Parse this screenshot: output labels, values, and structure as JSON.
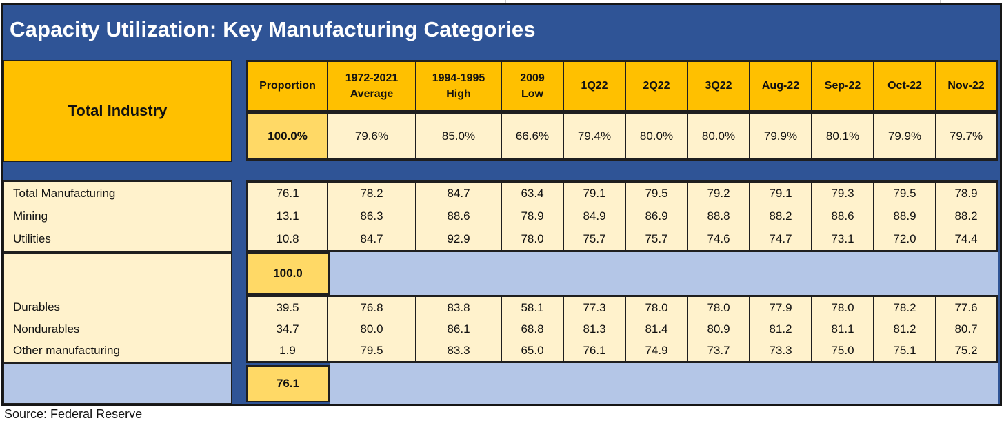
{
  "title": "Capacity Utilization: Key Manufacturing Categories",
  "source_note": "Source: Federal Reserve",
  "colors": {
    "band_blue": "#2F5496",
    "header_orange": "#FFC000",
    "subtotal_gold": "#FFD966",
    "cell_cream": "#FFF2CC",
    "empty_light_blue": "#B4C6E7",
    "border_black": "#1f1f1f",
    "title_white": "#FFFFFF"
  },
  "chart_data": {
    "type": "table",
    "title": "Capacity Utilization: Key Manufacturing Categories",
    "row_header_label": "Total Industry",
    "columns": [
      "Proportion",
      "1972-2021\nAverage",
      "1994-1995\nHigh",
      "2009\nLow",
      "1Q22",
      "2Q22",
      "3Q22",
      "Aug-22",
      "Sep-22",
      "Oct-22",
      "Nov-22"
    ],
    "total_industry_values": [
      "100.0%",
      "79.6%",
      "85.0%",
      "66.6%",
      "79.4%",
      "80.0%",
      "80.0%",
      "79.9%",
      "80.1%",
      "79.9%",
      "79.7%"
    ],
    "sections": [
      {
        "rows": [
          {
            "label": "Total Manufacturing",
            "values": [
              "76.1",
              "78.2",
              "84.7",
              "63.4",
              "79.1",
              "79.5",
              "79.2",
              "79.1",
              "79.3",
              "79.5",
              "78.9"
            ]
          },
          {
            "label": "Mining",
            "values": [
              "13.1",
              "86.3",
              "88.6",
              "78.9",
              "84.9",
              "86.9",
              "88.8",
              "88.2",
              "88.6",
              "88.9",
              "88.2"
            ]
          },
          {
            "label": "Utilities",
            "values": [
              "10.8",
              "84.7",
              "92.9",
              "78.0",
              "75.7",
              "75.7",
              "74.6",
              "74.7",
              "73.1",
              "72.0",
              "74.4"
            ]
          }
        ],
        "proportion_subtotal": "100.0"
      },
      {
        "rows": [
          {
            "label": "Durables",
            "values": [
              "39.5",
              "76.8",
              "83.8",
              "58.1",
              "77.3",
              "78.0",
              "78.0",
              "77.9",
              "78.0",
              "78.2",
              "77.6"
            ]
          },
          {
            "label": "Nondurables",
            "values": [
              "34.7",
              "80.0",
              "86.1",
              "68.8",
              "81.3",
              "81.4",
              "80.9",
              "81.2",
              "81.1",
              "81.2",
              "80.7"
            ]
          },
          {
            "label": "Other manufacturing",
            "values": [
              "1.9",
              "79.5",
              "83.3",
              "65.0",
              "76.1",
              "74.9",
              "73.7",
              "73.3",
              "75.0",
              "75.1",
              "75.2"
            ]
          }
        ],
        "proportion_subtotal": "76.1"
      }
    ],
    "source": "Source: Federal Reserve"
  }
}
